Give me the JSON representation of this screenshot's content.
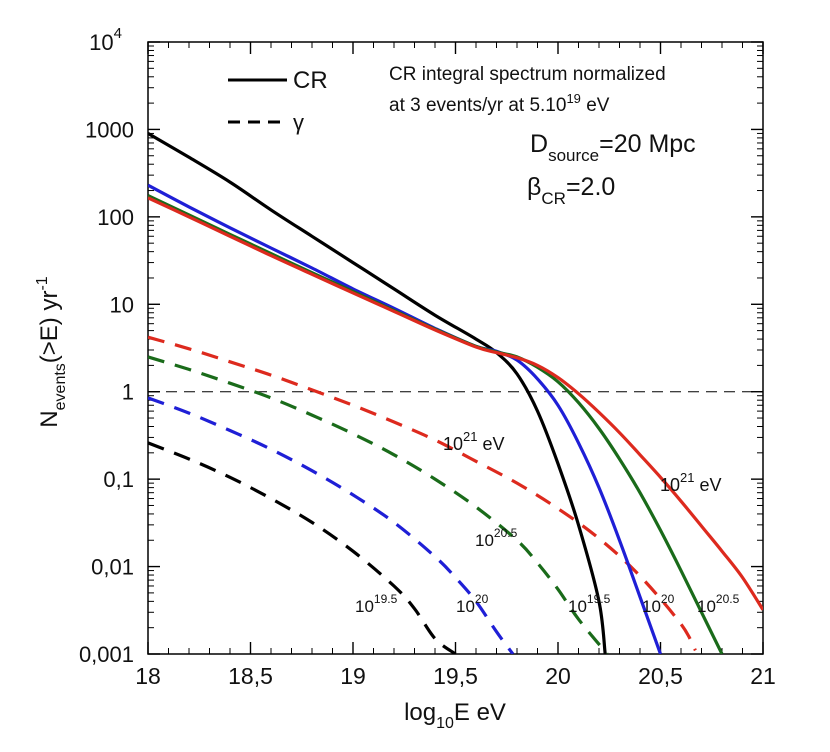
{
  "chart_data": {
    "type": "line",
    "xlabel": "log10E eV",
    "xlabel_main": "log",
    "xlabel_sub": "10",
    "xlabel_rest": "E eV",
    "ylabel_main": "N",
    "ylabel_sub": "events",
    "ylabel_rest": "(>E) yr",
    "ylabel_sup": "-1",
    "y_scale": "log",
    "xlim": [
      18,
      21
    ],
    "ylim": [
      0.001,
      10000
    ],
    "x_ticks": [
      {
        "value": 18,
        "label": "18"
      },
      {
        "value": 18.5,
        "label": "18,5"
      },
      {
        "value": 19,
        "label": "19"
      },
      {
        "value": 19.5,
        "label": "19,5"
      },
      {
        "value": 20,
        "label": "20"
      },
      {
        "value": 20.5,
        "label": "20,5"
      },
      {
        "value": 21,
        "label": "21"
      }
    ],
    "y_ticks": [
      {
        "value": 10000,
        "base": "10",
        "sup": "4"
      },
      {
        "value": 1000,
        "base": "1000",
        "sup": ""
      },
      {
        "value": 100,
        "base": "100",
        "sup": ""
      },
      {
        "value": 10,
        "base": "10",
        "sup": ""
      },
      {
        "value": 1,
        "base": "1",
        "sup": ""
      },
      {
        "value": 0.1,
        "base": "0,1",
        "sup": ""
      },
      {
        "value": 0.01,
        "base": "0,01",
        "sup": ""
      },
      {
        "value": 0.001,
        "base": "0,001",
        "sup": ""
      }
    ],
    "reference_line": {
      "y": 1,
      "style": "dashed"
    },
    "legend": {
      "position": "top-left",
      "items": [
        {
          "label": "CR",
          "style": "solid"
        },
        {
          "label": "γ",
          "style": "dashed"
        }
      ]
    },
    "annotations": {
      "note_line1": "CR integral spectrum normalized",
      "note_line2_pre": "at 3 events/yr at 5.10",
      "note_line2_sup": "19",
      "note_line2_post": " eV",
      "dsource_main": "D",
      "dsource_sub": "source",
      "dsource_rest": "=20 Mpc",
      "beta_main": "β",
      "beta_sub": "CR",
      "beta_rest": "=2.0"
    },
    "curve_labels": [
      {
        "id": "cr-21",
        "base": "10",
        "sup": "21",
        "post": " eV",
        "color": "#000000"
      },
      {
        "id": "g-21",
        "base": "10",
        "sup": "21",
        "post": " eV",
        "color": "#000000"
      },
      {
        "id": "g-20-5",
        "base": "10",
        "sup": "20.5",
        "post": "",
        "color": "#000000"
      },
      {
        "id": "g-19-5",
        "base": "10",
        "sup": "19.5",
        "post": "",
        "color": "#000000"
      },
      {
        "id": "g-20",
        "base": "10",
        "sup": "20",
        "post": "",
        "color": "#000000"
      },
      {
        "id": "cr-19-5",
        "base": "10",
        "sup": "19.5",
        "post": "",
        "color": "#000000"
      },
      {
        "id": "cr-20",
        "base": "10",
        "sup": "20",
        "post": "",
        "color": "#000000"
      },
      {
        "id": "cr-20-5",
        "base": "10",
        "sup": "20.5",
        "post": "",
        "color": "#000000"
      }
    ],
    "series": [
      {
        "name": "CR 10^19.5 eV",
        "kind": "CR",
        "style": "solid",
        "color": "#000000",
        "x": [
          18.0,
          18.2,
          18.4,
          18.6,
          18.8,
          19.0,
          19.2,
          19.4,
          19.6,
          19.7,
          19.8,
          19.9,
          20.0,
          20.1,
          20.2,
          20.23
        ],
        "y": [
          900,
          480,
          250,
          120,
          60,
          30,
          15,
          7.5,
          4.0,
          2.8,
          1.6,
          0.6,
          0.15,
          0.03,
          0.004,
          0.001
        ]
      },
      {
        "name": "CR 10^20 eV",
        "kind": "CR",
        "style": "solid",
        "color": "#1f1fd6",
        "x": [
          18.0,
          18.2,
          18.4,
          18.6,
          18.8,
          19.0,
          19.2,
          19.4,
          19.6,
          19.7,
          19.8,
          19.9,
          20.0,
          20.1,
          20.2,
          20.3,
          20.4,
          20.5
        ],
        "y": [
          230,
          130,
          75,
          44,
          26,
          15,
          9,
          5.3,
          3.3,
          2.9,
          2.3,
          1.4,
          0.7,
          0.26,
          0.08,
          0.02,
          0.0045,
          0.001
        ]
      },
      {
        "name": "CR 10^20.5 eV",
        "kind": "CR",
        "style": "solid",
        "color": "#1a6b1a",
        "x": [
          18.0,
          18.2,
          18.4,
          18.6,
          18.8,
          19.0,
          19.2,
          19.4,
          19.6,
          19.7,
          19.8,
          19.9,
          20.0,
          20.1,
          20.2,
          20.3,
          20.4,
          20.5,
          20.6,
          20.7,
          20.8
        ],
        "y": [
          175,
          105,
          63,
          38,
          23,
          14,
          8.5,
          5.2,
          3.3,
          2.85,
          2.5,
          1.9,
          1.3,
          0.75,
          0.38,
          0.17,
          0.07,
          0.026,
          0.009,
          0.003,
          0.001
        ]
      },
      {
        "name": "CR 10^21 eV",
        "kind": "CR",
        "style": "solid",
        "color": "#dd2a1e",
        "x": [
          18.0,
          18.2,
          18.4,
          18.6,
          18.8,
          19.0,
          19.2,
          19.4,
          19.6,
          19.7,
          19.8,
          19.9,
          20.0,
          20.1,
          20.2,
          20.3,
          20.4,
          20.5,
          20.6,
          20.7,
          20.8,
          20.9,
          21.0
        ],
        "y": [
          165,
          100,
          60,
          36,
          22,
          13.5,
          8.3,
          5.1,
          3.25,
          2.8,
          2.45,
          2.0,
          1.45,
          0.95,
          0.58,
          0.34,
          0.19,
          0.105,
          0.056,
          0.029,
          0.015,
          0.0075,
          0.0032
        ]
      },
      {
        "name": "γ 10^19.5 eV",
        "kind": "gamma",
        "style": "dashed",
        "color": "#000000",
        "x": [
          18.0,
          18.2,
          18.4,
          18.6,
          18.8,
          19.0,
          19.2,
          19.3,
          19.4,
          19.5
        ],
        "y": [
          0.26,
          0.17,
          0.105,
          0.06,
          0.032,
          0.015,
          0.006,
          0.0033,
          0.0015,
          0.001
        ]
      },
      {
        "name": "γ 10^20 eV",
        "kind": "gamma",
        "style": "dashed",
        "color": "#1f1fd6",
        "x": [
          18.0,
          18.2,
          18.4,
          18.6,
          18.8,
          19.0,
          19.2,
          19.4,
          19.5,
          19.6,
          19.7,
          19.78
        ],
        "y": [
          0.85,
          0.57,
          0.36,
          0.22,
          0.125,
          0.066,
          0.032,
          0.013,
          0.0075,
          0.004,
          0.0018,
          0.001
        ]
      },
      {
        "name": "γ 10^20.5 eV",
        "kind": "gamma",
        "style": "dashed",
        "color": "#1a6b1a",
        "x": [
          18.0,
          18.2,
          18.4,
          18.6,
          18.8,
          19.0,
          19.2,
          19.4,
          19.6,
          19.8,
          19.9,
          20.0,
          20.1,
          20.24
        ],
        "y": [
          2.5,
          1.8,
          1.25,
          0.85,
          0.54,
          0.33,
          0.19,
          0.1,
          0.048,
          0.02,
          0.011,
          0.0055,
          0.0025,
          0.001
        ]
      },
      {
        "name": "γ 10^21 eV",
        "kind": "gamma",
        "style": "dashed",
        "color": "#dd2a1e",
        "x": [
          18.0,
          18.2,
          18.4,
          18.6,
          18.8,
          19.0,
          19.2,
          19.4,
          19.6,
          19.8,
          20.0,
          20.2,
          20.4,
          20.6,
          20.67
        ],
        "y": [
          4.2,
          3.1,
          2.2,
          1.55,
          1.05,
          0.7,
          0.45,
          0.28,
          0.16,
          0.09,
          0.046,
          0.021,
          0.0078,
          0.0022,
          0.0011
        ]
      }
    ]
  }
}
